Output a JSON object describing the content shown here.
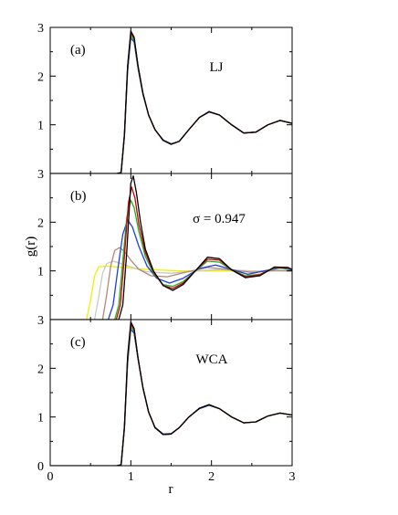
{
  "figure": {
    "xlabel": "r",
    "ylabel": "g(r)"
  },
  "chart_data": [
    {
      "type": "line",
      "panel_label": "(a)",
      "annotation": "LJ",
      "xlim": [
        0,
        3
      ],
      "ylim": [
        0,
        3
      ],
      "x_ticks": [],
      "y_ticks": [
        1,
        2,
        3
      ],
      "series": [
        {
          "color": "#d0d0d0",
          "x": [
            0.88,
            0.92,
            0.96,
            1.0,
            1.04,
            1.09,
            1.15,
            1.22,
            1.3,
            1.4,
            1.5,
            1.6,
            1.72,
            1.85,
            1.97,
            2.1,
            2.25,
            2.4,
            2.55,
            2.7,
            2.85,
            3.0
          ],
          "y": [
            0.02,
            0.8,
            2.2,
            2.95,
            2.8,
            2.2,
            1.65,
            1.2,
            0.9,
            0.68,
            0.6,
            0.66,
            0.9,
            1.15,
            1.27,
            1.2,
            1.0,
            0.83,
            0.85,
            1.0,
            1.09,
            1.03
          ]
        },
        {
          "color": "#1f3fd9",
          "x": [
            0.88,
            0.92,
            0.96,
            1.0,
            1.04,
            1.09,
            1.15,
            1.22,
            1.3,
            1.4,
            1.5,
            1.6,
            1.72,
            1.85,
            1.97,
            2.1,
            2.25,
            2.4,
            2.55,
            2.7,
            2.85,
            3.0
          ],
          "y": [
            0.02,
            0.75,
            2.1,
            2.78,
            2.7,
            2.15,
            1.62,
            1.2,
            0.9,
            0.69,
            0.61,
            0.66,
            0.9,
            1.15,
            1.26,
            1.2,
            1.0,
            0.83,
            0.85,
            1.0,
            1.09,
            1.03
          ]
        },
        {
          "color": "#22b022",
          "x": [
            0.88,
            0.92,
            0.96,
            1.0,
            1.04,
            1.09,
            1.15,
            1.22,
            1.3,
            1.4,
            1.5,
            1.6,
            1.72,
            1.85,
            1.97,
            2.1,
            2.25,
            2.4,
            2.55,
            2.7,
            2.85,
            3.0
          ],
          "y": [
            0.02,
            0.78,
            2.15,
            2.83,
            2.74,
            2.17,
            1.63,
            1.2,
            0.9,
            0.68,
            0.6,
            0.66,
            0.9,
            1.15,
            1.27,
            1.2,
            1.0,
            0.83,
            0.85,
            1.0,
            1.09,
            1.03
          ]
        },
        {
          "color": "#cc0000",
          "x": [
            0.88,
            0.92,
            0.96,
            1.0,
            1.04,
            1.09,
            1.15,
            1.22,
            1.3,
            1.4,
            1.5,
            1.6,
            1.72,
            1.85,
            1.97,
            2.1,
            2.25,
            2.4,
            2.55,
            2.7,
            2.85,
            3.0
          ],
          "y": [
            0.02,
            0.8,
            2.2,
            2.88,
            2.78,
            2.19,
            1.64,
            1.2,
            0.9,
            0.68,
            0.6,
            0.66,
            0.9,
            1.15,
            1.27,
            1.2,
            1.0,
            0.83,
            0.85,
            1.0,
            1.09,
            1.03
          ]
        },
        {
          "color": "#000000",
          "x": [
            0.0,
            0.82,
            0.88,
            0.92,
            0.96,
            1.0,
            1.04,
            1.09,
            1.15,
            1.22,
            1.3,
            1.4,
            1.5,
            1.6,
            1.72,
            1.85,
            1.97,
            2.1,
            2.25,
            2.4,
            2.55,
            2.7,
            2.85,
            3.0
          ],
          "y": [
            0.0,
            0.0,
            0.02,
            0.8,
            2.2,
            2.92,
            2.8,
            2.2,
            1.65,
            1.2,
            0.9,
            0.68,
            0.6,
            0.66,
            0.9,
            1.15,
            1.27,
            1.2,
            1.0,
            0.83,
            0.85,
            1.0,
            1.09,
            1.03
          ]
        }
      ]
    },
    {
      "type": "line",
      "panel_label": "(b)",
      "annotation": "σ = 0.947",
      "xlim": [
        0,
        3
      ],
      "ylim": [
        0,
        3
      ],
      "x_ticks": [],
      "y_ticks": [
        1,
        2,
        3
      ],
      "series": [
        {
          "color": "#f0f000",
          "x": [
            0.45,
            0.5,
            0.55,
            0.6,
            0.7,
            0.9,
            1.2,
            1.6,
            2.0,
            2.5,
            3.0
          ],
          "y": [
            0.0,
            0.4,
            0.9,
            1.08,
            1.1,
            1.07,
            1.03,
            1.0,
            1.0,
            1.0,
            1.0
          ]
        },
        {
          "color": "#c8c8c8",
          "x": [
            0.55,
            0.6,
            0.65,
            0.7,
            0.78,
            0.88,
            1.0,
            1.2,
            1.5,
            1.8,
            2.1,
            2.5,
            3.0
          ],
          "y": [
            0.0,
            0.45,
            0.95,
            1.15,
            1.2,
            1.15,
            1.08,
            0.98,
            0.95,
            1.0,
            1.03,
            1.0,
            1.0
          ]
        },
        {
          "color": "#b08878",
          "x": [
            0.65,
            0.7,
            0.75,
            0.8,
            0.86,
            0.92,
            1.0,
            1.1,
            1.25,
            1.45,
            1.7,
            1.95,
            2.2,
            2.5,
            2.8,
            3.0
          ],
          "y": [
            0.0,
            0.5,
            1.1,
            1.42,
            1.48,
            1.4,
            1.22,
            1.03,
            0.9,
            0.88,
            0.98,
            1.07,
            1.03,
            0.97,
            1.01,
            1.0
          ]
        },
        {
          "color": "#1f3fd9",
          "x": [
            0.72,
            0.78,
            0.84,
            0.9,
            0.96,
            1.02,
            1.1,
            1.2,
            1.32,
            1.48,
            1.65,
            1.85,
            2.05,
            2.25,
            2.45,
            2.65,
            2.85,
            3.0
          ],
          "y": [
            0.0,
            0.3,
            1.05,
            1.75,
            2.05,
            1.9,
            1.5,
            1.1,
            0.85,
            0.75,
            0.85,
            1.05,
            1.12,
            1.03,
            0.93,
            1.0,
            1.06,
            1.02
          ]
        },
        {
          "color": "#22b022",
          "x": [
            0.8,
            0.85,
            0.9,
            0.95,
            1.0,
            1.04,
            1.1,
            1.18,
            1.28,
            1.4,
            1.52,
            1.65,
            1.8,
            1.95,
            2.1,
            2.25,
            2.42,
            2.6,
            2.78,
            2.95,
            3.0
          ],
          "y": [
            0.0,
            0.3,
            1.2,
            2.1,
            2.45,
            2.3,
            1.8,
            1.3,
            0.95,
            0.72,
            0.68,
            0.78,
            1.0,
            1.2,
            1.18,
            1.02,
            0.9,
            0.93,
            1.06,
            1.05,
            1.03
          ]
        },
        {
          "color": "#cc0000",
          "x": [
            0.82,
            0.87,
            0.92,
            0.97,
            1.01,
            1.05,
            1.1,
            1.18,
            1.28,
            1.4,
            1.52,
            1.65,
            1.8,
            1.95,
            2.1,
            2.25,
            2.42,
            2.6,
            2.78,
            2.95,
            3.0
          ],
          "y": [
            0.0,
            0.3,
            1.3,
            2.4,
            2.72,
            2.5,
            1.95,
            1.38,
            0.98,
            0.7,
            0.64,
            0.75,
            1.0,
            1.24,
            1.22,
            1.02,
            0.88,
            0.92,
            1.07,
            1.06,
            1.03
          ]
        },
        {
          "color": "#000000",
          "x": [
            0.0,
            0.85,
            0.9,
            0.95,
            1.0,
            1.03,
            1.07,
            1.12,
            1.18,
            1.28,
            1.4,
            1.52,
            1.65,
            1.8,
            1.95,
            2.1,
            2.25,
            2.42,
            2.6,
            2.78,
            2.95,
            3.0
          ],
          "y": [
            0.0,
            0.0,
            0.3,
            1.4,
            2.8,
            2.95,
            2.6,
            2.0,
            1.45,
            1.0,
            0.7,
            0.6,
            0.72,
            1.0,
            1.28,
            1.25,
            1.02,
            0.86,
            0.9,
            1.08,
            1.07,
            1.03
          ]
        }
      ]
    },
    {
      "type": "line",
      "panel_label": "(c)",
      "annotation": "WCA",
      "xlim": [
        0,
        3
      ],
      "ylim": [
        0,
        3
      ],
      "x_ticks": [
        0,
        1,
        2,
        3
      ],
      "y_ticks": [
        0,
        1,
        2,
        3
      ],
      "series": [
        {
          "color": "#d0d0d0",
          "x": [
            0.88,
            0.92,
            0.96,
            1.0,
            1.04,
            1.09,
            1.15,
            1.22,
            1.3,
            1.4,
            1.5,
            1.6,
            1.72,
            1.85,
            1.97,
            2.1,
            2.25,
            2.4,
            2.55,
            2.7,
            2.85,
            3.0
          ],
          "y": [
            0.02,
            0.8,
            2.2,
            2.9,
            2.78,
            2.2,
            1.6,
            1.1,
            0.78,
            0.64,
            0.65,
            0.78,
            1.0,
            1.18,
            1.25,
            1.17,
            1.0,
            0.88,
            0.9,
            1.02,
            1.08,
            1.04
          ]
        },
        {
          "color": "#1f3fd9",
          "x": [
            0.88,
            0.92,
            0.96,
            1.0,
            1.04,
            1.09,
            1.15,
            1.22,
            1.3,
            1.4,
            1.5,
            1.6,
            1.72,
            1.85,
            1.97,
            2.1,
            2.25,
            2.4,
            2.55,
            2.7,
            2.85,
            3.0
          ],
          "y": [
            0.02,
            0.75,
            2.1,
            2.8,
            2.72,
            2.18,
            1.6,
            1.1,
            0.79,
            0.65,
            0.66,
            0.78,
            1.0,
            1.17,
            1.24,
            1.17,
            1.0,
            0.88,
            0.9,
            1.02,
            1.08,
            1.04
          ]
        },
        {
          "color": "#22b022",
          "x": [
            0.88,
            0.92,
            0.96,
            1.0,
            1.04,
            1.09,
            1.15,
            1.22,
            1.3,
            1.4,
            1.5,
            1.6,
            1.72,
            1.85,
            1.97,
            2.1,
            2.25,
            2.4,
            2.55,
            2.7,
            2.85,
            3.0
          ],
          "y": [
            0.02,
            0.78,
            2.15,
            2.85,
            2.76,
            2.19,
            1.6,
            1.1,
            0.78,
            0.64,
            0.65,
            0.78,
            1.0,
            1.18,
            1.26,
            1.17,
            1.0,
            0.88,
            0.9,
            1.02,
            1.08,
            1.04
          ]
        },
        {
          "color": "#cc0000",
          "x": [
            0.88,
            0.92,
            0.96,
            1.0,
            1.04,
            1.09,
            1.15,
            1.22,
            1.3,
            1.4,
            1.5,
            1.6,
            1.72,
            1.85,
            1.97,
            2.1,
            2.25,
            2.4,
            2.55,
            2.7,
            2.85,
            3.0
          ],
          "y": [
            0.02,
            0.8,
            2.2,
            2.9,
            2.8,
            2.2,
            1.6,
            1.1,
            0.78,
            0.64,
            0.65,
            0.78,
            1.0,
            1.18,
            1.25,
            1.17,
            1.0,
            0.88,
            0.9,
            1.02,
            1.08,
            1.04
          ]
        },
        {
          "color": "#000000",
          "x": [
            0.0,
            0.82,
            0.88,
            0.92,
            0.96,
            1.0,
            1.04,
            1.09,
            1.15,
            1.22,
            1.3,
            1.4,
            1.5,
            1.6,
            1.72,
            1.85,
            1.97,
            2.1,
            2.25,
            2.4,
            2.55,
            2.7,
            2.85,
            3.0
          ],
          "y": [
            0.0,
            0.0,
            0.02,
            0.8,
            2.25,
            2.95,
            2.82,
            2.2,
            1.6,
            1.1,
            0.78,
            0.64,
            0.65,
            0.78,
            1.0,
            1.18,
            1.25,
            1.17,
            1.0,
            0.88,
            0.9,
            1.02,
            1.08,
            1.04
          ]
        }
      ]
    }
  ]
}
